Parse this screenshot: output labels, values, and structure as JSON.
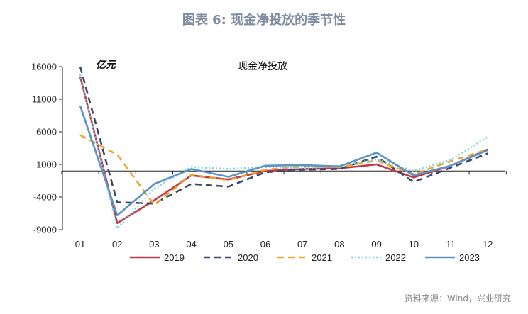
{
  "figure_title": "图表 6:  现金净投放的季节性",
  "source": "资料来源：Wind，兴业研究",
  "chart_data": {
    "type": "line",
    "title": "现金净投放",
    "ylabel": "亿元",
    "xlabel": "",
    "categories": [
      "01",
      "02",
      "03",
      "04",
      "05",
      "06",
      "07",
      "08",
      "09",
      "10",
      "11",
      "12"
    ],
    "yticks": [
      16000,
      11000,
      6000,
      1000,
      -4000,
      -9000
    ],
    "ylim": [
      -9000,
      16000
    ],
    "grid": false,
    "legend_position": "bottom",
    "series": [
      {
        "name": "2019",
        "color": "#c0394b",
        "style": "solid",
        "values": [
          14500,
          -8000,
          -4500,
          -700,
          -1300,
          0,
          300,
          400,
          1000,
          -1000,
          800,
          3300
        ]
      },
      {
        "name": "2020",
        "color": "#3a4a66",
        "style": "dashed",
        "values": [
          16000,
          -4800,
          -5000,
          -2000,
          -2400,
          -200,
          200,
          300,
          2200,
          -1700,
          500,
          2700
        ]
      },
      {
        "name": "2021",
        "color": "#e8a631",
        "style": "dashed",
        "values": [
          5500,
          2500,
          -5200,
          -600,
          -1400,
          200,
          700,
          600,
          1600,
          -500,
          1500,
          3300
        ]
      },
      {
        "name": "2022",
        "color": "#7fd3e0",
        "style": "dotted",
        "values": [
          14800,
          -8800,
          -2700,
          600,
          300,
          600,
          400,
          800,
          1800,
          0,
          1700,
          5200
        ]
      },
      {
        "name": "2023",
        "color": "#5b93c7",
        "style": "solid",
        "values": [
          10000,
          -6800,
          -2000,
          300,
          -900,
          800,
          900,
          700,
          2800,
          -700,
          800,
          3200
        ]
      }
    ]
  }
}
